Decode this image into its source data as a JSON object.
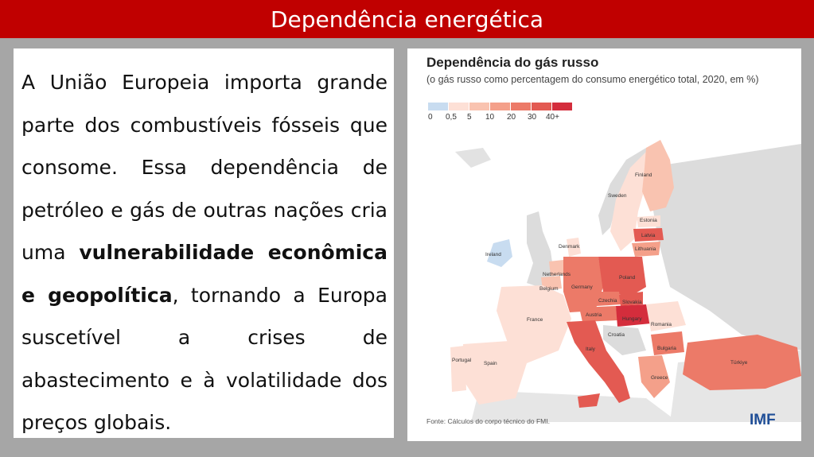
{
  "slide": {
    "title": "Dependência energética"
  },
  "text": {
    "part1": "A União Europeia importa grande parte dos combustíveis fósseis que consome. Essa dependência de petróleo e gás de outras nações cria uma ",
    "bold": "vulnerabilidade econômica e geopolítica",
    "part2": ", tornando a Europa suscetível a crises de abastecimento e à volatilidade dos preços globais."
  },
  "map": {
    "title": "Dependência do gás russo",
    "subtitle": "(o gás russo como percentagem do consumo energético total, 2020, em %)",
    "legend_labels": [
      "0",
      "0,5",
      "5",
      "10",
      "20",
      "30",
      "40+"
    ],
    "legend_colors": [
      "#c8dcf0",
      "#fde0d6",
      "#f9c3b0",
      "#f4a08a",
      "#ec7a68",
      "#e35a52",
      "#d42d3c"
    ],
    "countries": {
      "finland": "Finland",
      "sweden": "Sweden",
      "estonia": "Estonia",
      "latvia": "Latvia",
      "lithuania": "Lithuania",
      "denmark": "Denmark",
      "ireland": "Ireland",
      "netherlands": "Netherlands",
      "belgium": "Belgium",
      "germany": "Germany",
      "poland": "Poland",
      "czechia": "Czechia",
      "slovakia": "Slovakia",
      "austria": "Austria",
      "hungary": "Hungary",
      "france": "France",
      "romania": "Romania",
      "croatia": "Croatia",
      "italy": "Italy",
      "bulgaria": "Bulgaria",
      "portugal": "Portugal",
      "spain": "Spain",
      "greece": "Greece",
      "turkiye": "Türkiye"
    },
    "source": "Fonte: Cálculos do corpo técnico do FMI.",
    "logo_text": "IMF"
  }
}
